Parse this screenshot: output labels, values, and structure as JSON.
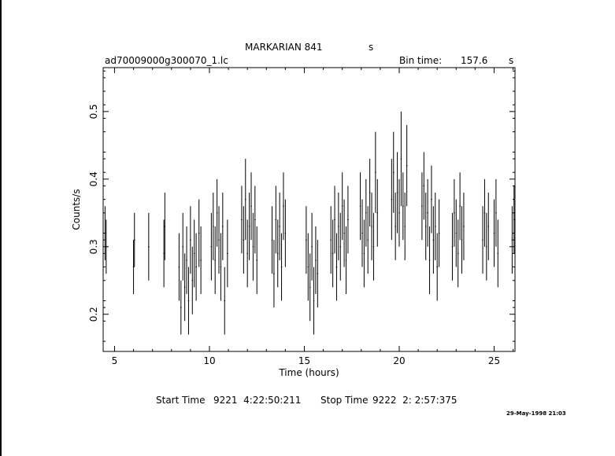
{
  "header": {
    "title": "MARKARIAN 841",
    "title_unit": "s",
    "filename": "ad70009000g300070_1.lc",
    "bin_label": "Bin time:",
    "bin_value": "157.6",
    "bin_unit": "s"
  },
  "footer": {
    "start_label": "Start Time",
    "start_value": "9221  4:22:50:211",
    "stop_label": "Stop Time",
    "stop_value": "9222  2: 2:57:375",
    "date_stamp": "29-May-1998 21:03"
  },
  "chart_data": {
    "type": "scatter",
    "title": "MARKARIAN 841",
    "xlabel": "Time (hours)",
    "ylabel": "Counts/s",
    "xlim": [
      4.4,
      26.1
    ],
    "ylim": [
      0.145,
      0.565
    ],
    "xticks": [
      5,
      10,
      15,
      20,
      25
    ],
    "yticks": [
      0.2,
      0.3,
      0.4,
      0.5
    ],
    "grid": false,
    "error_bars": true,
    "series": [
      {
        "x": [
          4.5,
          4.56,
          6.0,
          6.05,
          6.8,
          7.6,
          7.65,
          8.4,
          8.5,
          8.6,
          8.7,
          8.8,
          8.9,
          9.0,
          9.1,
          9.2,
          9.3,
          9.45,
          9.55,
          10.1,
          10.2,
          10.3,
          10.4,
          10.5,
          10.6,
          10.7,
          10.8,
          10.95,
          11.7,
          11.8,
          11.9,
          12.0,
          12.1,
          12.2,
          12.3,
          12.4,
          12.5,
          13.3,
          13.4,
          13.5,
          13.6,
          13.7,
          13.8,
          13.9,
          14.0,
          15.1,
          15.2,
          15.3,
          15.4,
          15.5,
          15.6,
          15.7,
          16.4,
          16.5,
          16.6,
          16.7,
          16.8,
          16.9,
          17.0,
          17.1,
          17.2,
          17.3,
          17.95,
          18.05,
          18.15,
          18.25,
          18.35,
          18.45,
          18.55,
          18.65,
          18.75,
          18.85,
          19.6,
          19.7,
          19.8,
          19.9,
          20.0,
          20.1,
          20.2,
          20.3,
          20.4,
          21.2,
          21.3,
          21.4,
          21.5,
          21.6,
          21.7,
          21.8,
          21.9,
          22.0,
          22.1,
          22.8,
          22.9,
          23.0,
          23.1,
          23.2,
          23.3,
          23.4,
          24.4,
          24.5,
          24.6,
          24.7,
          25.0,
          25.1,
          25.2,
          25.95,
          26.05
        ],
        "y": [
          0.32,
          0.3,
          0.27,
          0.31,
          0.3,
          0.29,
          0.33,
          0.27,
          0.21,
          0.3,
          0.24,
          0.28,
          0.22,
          0.31,
          0.25,
          0.29,
          0.27,
          0.32,
          0.28,
          0.3,
          0.33,
          0.28,
          0.35,
          0.31,
          0.27,
          0.33,
          0.22,
          0.29,
          0.34,
          0.31,
          0.37,
          0.29,
          0.33,
          0.36,
          0.3,
          0.34,
          0.28,
          0.31,
          0.26,
          0.34,
          0.29,
          0.33,
          0.27,
          0.36,
          0.32,
          0.31,
          0.27,
          0.24,
          0.3,
          0.22,
          0.28,
          0.26,
          0.31,
          0.29,
          0.34,
          0.27,
          0.33,
          0.3,
          0.36,
          0.32,
          0.28,
          0.34,
          0.36,
          0.32,
          0.29,
          0.35,
          0.31,
          0.38,
          0.33,
          0.3,
          0.41,
          0.35,
          0.37,
          0.41,
          0.33,
          0.38,
          0.35,
          0.43,
          0.36,
          0.33,
          0.42,
          0.36,
          0.39,
          0.33,
          0.35,
          0.28,
          0.37,
          0.31,
          0.33,
          0.27,
          0.32,
          0.3,
          0.35,
          0.32,
          0.29,
          0.36,
          0.31,
          0.33,
          0.31,
          0.35,
          0.3,
          0.33,
          0.32,
          0.35,
          0.29,
          0.31,
          0.34
        ],
        "err": [
          0.04,
          0.04,
          0.04,
          0.04,
          0.05,
          0.05,
          0.05,
          0.05,
          0.04,
          0.05,
          0.05,
          0.05,
          0.05,
          0.05,
          0.05,
          0.05,
          0.05,
          0.05,
          0.05,
          0.05,
          0.05,
          0.05,
          0.05,
          0.05,
          0.05,
          0.05,
          0.05,
          0.05,
          0.05,
          0.05,
          0.06,
          0.05,
          0.05,
          0.05,
          0.05,
          0.05,
          0.05,
          0.05,
          0.05,
          0.05,
          0.05,
          0.05,
          0.05,
          0.05,
          0.05,
          0.05,
          0.05,
          0.05,
          0.05,
          0.05,
          0.05,
          0.05,
          0.05,
          0.05,
          0.05,
          0.05,
          0.05,
          0.05,
          0.05,
          0.05,
          0.05,
          0.05,
          0.05,
          0.05,
          0.05,
          0.05,
          0.05,
          0.05,
          0.05,
          0.05,
          0.06,
          0.05,
          0.06,
          0.06,
          0.05,
          0.06,
          0.05,
          0.07,
          0.05,
          0.05,
          0.06,
          0.05,
          0.05,
          0.05,
          0.05,
          0.05,
          0.05,
          0.05,
          0.05,
          0.05,
          0.05,
          0.05,
          0.05,
          0.05,
          0.05,
          0.05,
          0.05,
          0.05,
          0.05,
          0.05,
          0.05,
          0.05,
          0.05,
          0.05,
          0.05,
          0.05,
          0.05
        ]
      }
    ]
  }
}
